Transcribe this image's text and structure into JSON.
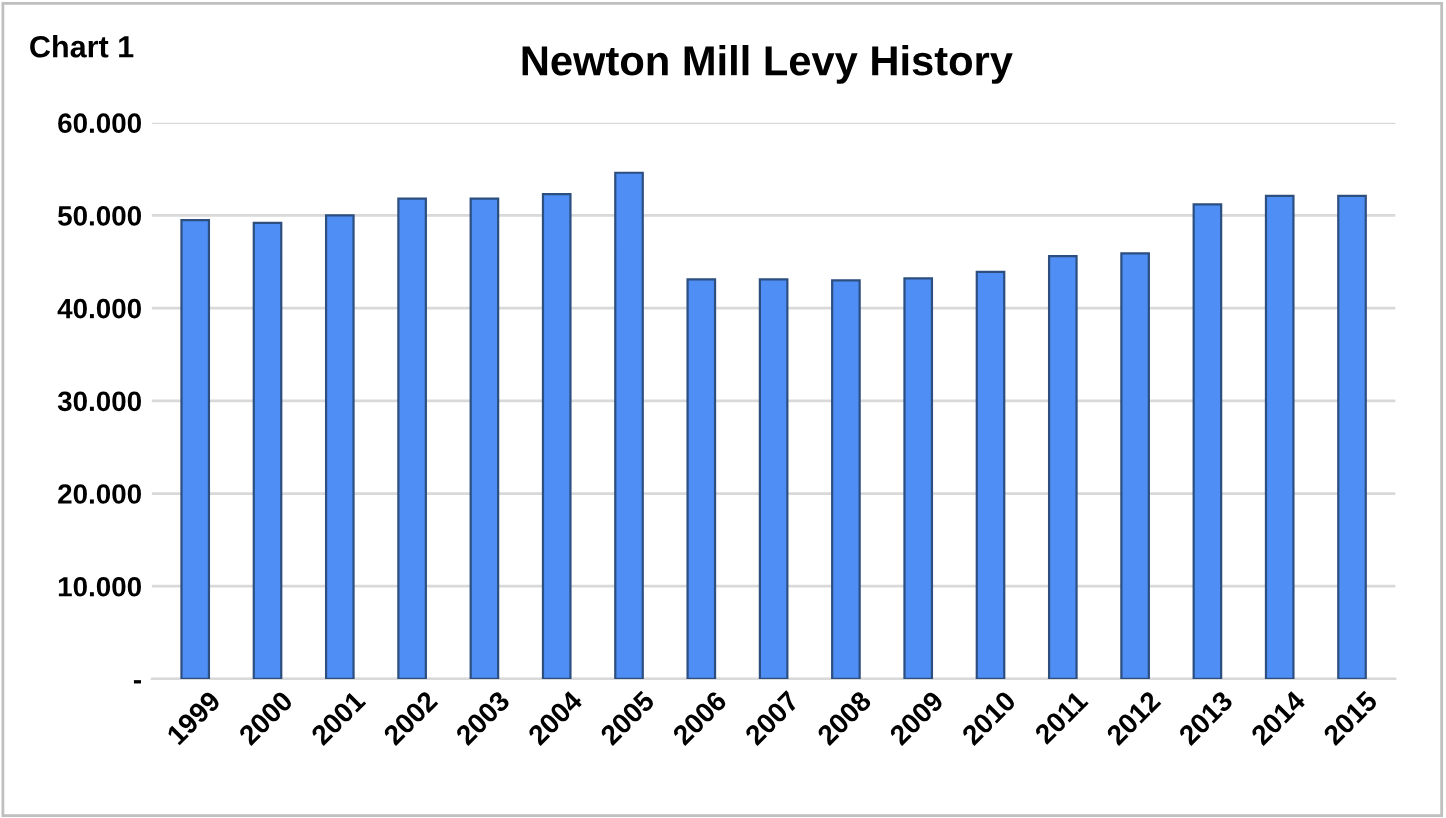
{
  "chart_data": {
    "type": "bar",
    "title": "Newton Mill Levy History",
    "annotations": [
      "Chart 1"
    ],
    "categories": [
      "1999",
      "2000",
      "2001",
      "2002",
      "2003",
      "2004",
      "2005",
      "2006",
      "2007",
      "2008",
      "2009",
      "2010",
      "2011",
      "2012",
      "2013",
      "2014",
      "2015"
    ],
    "values": [
      49.5,
      49.2,
      50.0,
      51.8,
      51.8,
      52.3,
      54.6,
      43.1,
      43.1,
      43.0,
      43.2,
      43.9,
      45.6,
      45.9,
      51.2,
      52.1,
      52.1
    ],
    "color": "#4f8ef5",
    "ylim": [
      0,
      60
    ],
    "yticks": [
      {
        "value": 0,
        "label": "-"
      },
      {
        "value": 10,
        "label": "10.000"
      },
      {
        "value": 20,
        "label": "20.000"
      },
      {
        "value": 30,
        "label": "30.000"
      },
      {
        "value": 40,
        "label": "40.000"
      },
      {
        "value": 50,
        "label": "50.000"
      },
      {
        "value": 60,
        "label": "60.000"
      }
    ],
    "grid": "y",
    "legend": false
  }
}
